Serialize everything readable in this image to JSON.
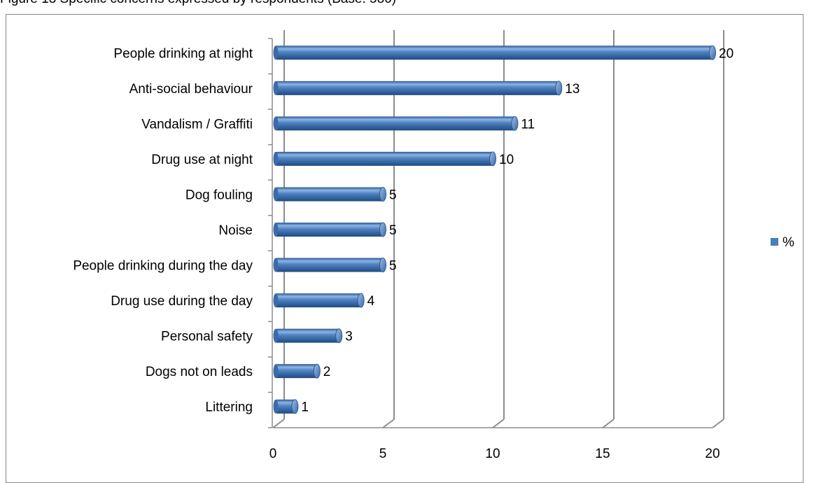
{
  "caption": "Figure 13 Specific concerns expressed by respondents (Base: 580)",
  "chart_data": {
    "type": "bar",
    "orientation": "horizontal",
    "style": "3d-cylinder",
    "categories": [
      "People drinking at night",
      "Anti-social behaviour",
      "Vandalism / Graffiti",
      "Drug use at night",
      "Dog fouling",
      "Noise",
      "People drinking during the day",
      "Drug use during the day",
      "Personal safety",
      "Dogs not on leads",
      "Littering"
    ],
    "series": [
      {
        "name": "%",
        "values": [
          20,
          13,
          11,
          10,
          5,
          5,
          5,
          4,
          3,
          2,
          1
        ],
        "color": "#4a7ebb"
      }
    ],
    "data_labels": [
      "20",
      "13",
      "11",
      "10",
      "5",
      "5",
      "5",
      "4",
      "3",
      "2",
      "1"
    ],
    "xlim": [
      0,
      20
    ],
    "xticks": [
      "0",
      "5",
      "10",
      "15",
      "20"
    ],
    "grid": "vertical",
    "legend_position": "right"
  },
  "colors": {
    "bar": "#4a7ebb",
    "bar_light": "#8db3e2",
    "bar_dark": "#2c5a96",
    "gridline": "#8c8c8c",
    "text": "#000000"
  }
}
